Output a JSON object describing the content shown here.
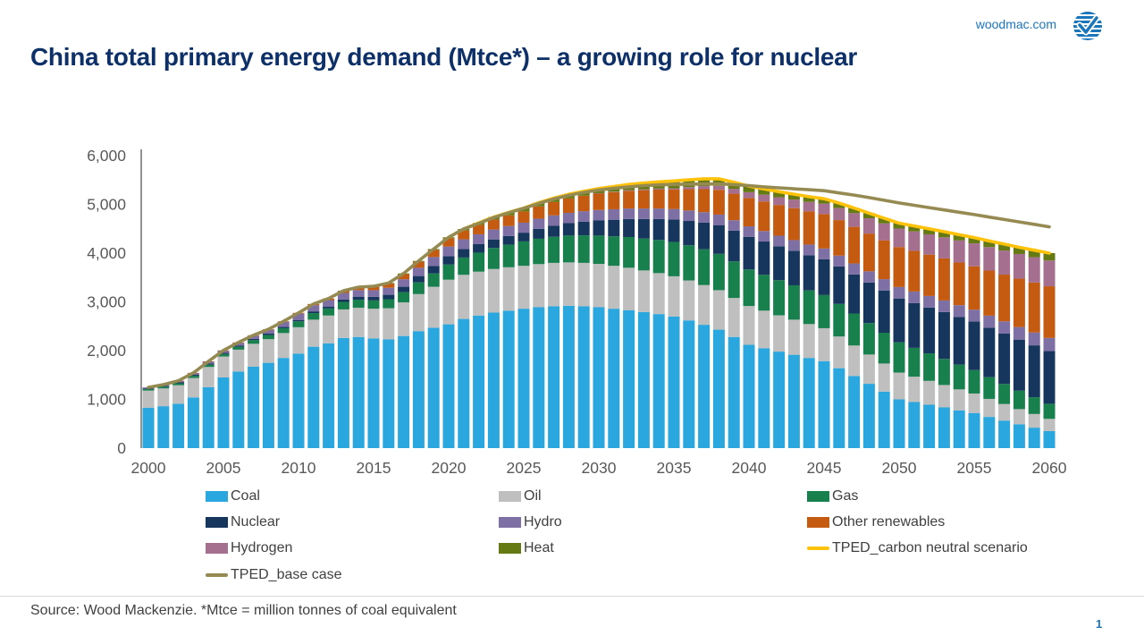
{
  "header": {
    "site": "woodmac.com",
    "logo": "woodmac-globe-check-logo",
    "page_number": "1"
  },
  "title": "China total primary energy demand (Mtce*) – a growing role for nuclear",
  "footer": {
    "source": "Source: Wood Mackenzie. *Mtce = million tonnes of coal equivalent"
  },
  "colors": {
    "title": "#0D3068",
    "brand_blue": "#1B75BB",
    "axis_text": "#595959",
    "legend_text": "#404040"
  },
  "chart_data": {
    "type": "bar",
    "stacked": true,
    "title": "China total primary energy demand (Mtce*)",
    "unit": "Mtce",
    "years": {
      "start": 2000,
      "end": 2060,
      "step": 1
    },
    "x_tick_labels": [
      "2000",
      "2005",
      "2010",
      "2015",
      "2020",
      "2025",
      "2030",
      "2035",
      "2040",
      "2045",
      "2050",
      "2055",
      "2060"
    ],
    "y_ticks": [
      0,
      1000,
      2000,
      3000,
      4000,
      5000,
      6000
    ],
    "y_tick_labels": [
      "0",
      "1,000",
      "2,000",
      "3,000",
      "4,000",
      "5,000",
      "6,000"
    ],
    "ylim": [
      0,
      6000
    ],
    "grid": false,
    "legend_position": "bottom",
    "series": [
      {
        "name": "Coal",
        "color": "#2AA7DE",
        "values": [
          830,
          860,
          910,
          1040,
          1250,
          1450,
          1570,
          1670,
          1750,
          1850,
          1940,
          2080,
          2150,
          2260,
          2280,
          2250,
          2230,
          2300,
          2400,
          2470,
          2540,
          2650,
          2720,
          2780,
          2820,
          2860,
          2890,
          2910,
          2920,
          2910,
          2890,
          2860,
          2830,
          2790,
          2750,
          2700,
          2620,
          2530,
          2430,
          2280,
          2120,
          2050,
          1980,
          1915,
          1850,
          1785,
          1640,
          1480,
          1320,
          1160,
          1000,
          945,
          890,
          835,
          775,
          720,
          640,
          565,
          490,
          420,
          350
        ]
      },
      {
        "name": "Oil",
        "color": "#BFBFBF",
        "values": [
          350,
          365,
          380,
          400,
          415,
          430,
          450,
          470,
          485,
          510,
          540,
          555,
          570,
          585,
          600,
          610,
          640,
          690,
          760,
          840,
          915,
          905,
          900,
          895,
          890,
          880,
          885,
          890,
          890,
          890,
          890,
          880,
          870,
          855,
          840,
          825,
          820,
          815,
          810,
          800,
          795,
          770,
          745,
          720,
          695,
          675,
          650,
          625,
          600,
          575,
          550,
          520,
          490,
          460,
          430,
          400,
          370,
          340,
          310,
          280,
          250
        ]
      },
      {
        "name": "Gas",
        "color": "#17804D",
        "values": [
          30,
          35,
          40,
          45,
          48,
          50,
          60,
          75,
          85,
          100,
          120,
          135,
          145,
          155,
          165,
          170,
          185,
          210,
          240,
          275,
          310,
          355,
          390,
          430,
          465,
          500,
          520,
          535,
          550,
          565,
          580,
          605,
          630,
          655,
          680,
          705,
          720,
          735,
          745,
          750,
          750,
          735,
          720,
          705,
          690,
          680,
          668,
          656,
          644,
          632,
          620,
          592,
          564,
          536,
          508,
          480,
          446,
          412,
          378,
          344,
          310
        ]
      },
      {
        "name": "Nuclear",
        "color": "#17365D",
        "values": [
          15,
          17,
          19,
          21,
          23,
          25,
          26,
          27,
          28,
          29,
          30,
          35,
          40,
          50,
          62,
          75,
          90,
          110,
          130,
          150,
          170,
          172,
          174,
          176,
          178,
          180,
          205,
          230,
          255,
          282,
          310,
          340,
          370,
          400,
          430,
          460,
          500,
          545,
          590,
          630,
          670,
          683,
          696,
          709,
          722,
          735,
          768,
          801,
          834,
          867,
          900,
          920,
          940,
          960,
          980,
          1000,
          1016,
          1032,
          1048,
          1064,
          1080
        ]
      },
      {
        "name": "Hydro",
        "color": "#7E6FA5",
        "values": [
          20,
          25,
          30,
          35,
          40,
          45,
          55,
          65,
          80,
          100,
          130,
          128,
          132,
          133,
          134,
          135,
          145,
          155,
          170,
          185,
          200,
          201,
          202,
          203,
          204,
          205,
          207,
          209,
          211,
          213,
          215,
          215,
          215,
          215,
          215,
          215,
          215,
          215,
          215,
          215,
          215,
          216,
          217,
          218,
          219,
          220,
          223,
          226,
          229,
          232,
          235,
          236,
          237,
          238,
          239,
          240,
          246,
          252,
          258,
          264,
          270
        ]
      },
      {
        "name": "Other renewables",
        "color": "#C55A11",
        "values": [
          0,
          1,
          2,
          3,
          4,
          5,
          7,
          9,
          11,
          13,
          15,
          24,
          33,
          44,
          56,
          70,
          86,
          104,
          124,
          146,
          170,
          182,
          194,
          206,
          218,
          230,
          252,
          274,
          296,
          318,
          340,
          352,
          364,
          376,
          388,
          400,
          436,
          472,
          508,
          544,
          580,
          605,
          630,
          655,
          680,
          705,
          728,
          751,
          774,
          797,
          820,
          834,
          848,
          862,
          876,
          890,
          924,
          958,
          992,
          1026,
          1060
        ]
      },
      {
        "name": "Hydrogen",
        "color": "#A56F8F",
        "values": [
          0,
          0,
          0,
          0,
          0,
          0,
          0,
          0,
          0,
          0,
          0,
          0,
          0,
          0,
          0,
          0,
          0,
          0,
          0,
          0,
          0,
          0,
          0,
          0,
          0,
          0,
          0,
          0,
          0,
          0,
          5,
          9,
          13,
          17,
          21,
          25,
          44,
          63,
          82,
          101,
          120,
          139,
          158,
          177,
          196,
          215,
          248,
          281,
          314,
          347,
          380,
          398,
          416,
          434,
          452,
          470,
          482,
          494,
          506,
          518,
          530
        ]
      },
      {
        "name": "Heat",
        "color": "#667A14",
        "values": [
          0,
          0,
          0,
          0,
          0,
          0,
          0,
          0,
          0,
          0,
          0,
          0,
          0,
          3,
          6,
          10,
          12,
          14,
          16,
          18,
          20,
          30,
          40,
          50,
          60,
          70,
          75,
          80,
          85,
          90,
          95,
          106,
          117,
          128,
          139,
          150,
          150,
          150,
          145,
          135,
          125,
          120,
          115,
          110,
          105,
          100,
          102,
          104,
          106,
          108,
          110,
          112,
          114,
          116,
          118,
          120,
          126,
          132,
          138,
          144,
          150
        ]
      }
    ],
    "lines": [
      {
        "name": "TPED_carbon neutral scenario",
        "color": "#FFC20A",
        "start_year": 2020,
        "values": [
          4325,
          4495,
          4620,
          4740,
          4835,
          4925,
          5034,
          5128,
          5207,
          5268,
          5325,
          5367,
          5409,
          5436,
          5463,
          5480,
          5505,
          5525,
          5525,
          5455,
          5375,
          5318,
          5261,
          5209,
          5157,
          5115,
          5027,
          4924,
          4821,
          4718,
          4615,
          4557,
          4499,
          4441,
          4378,
          4320,
          4250,
          4185,
          4120,
          4060,
          4000
        ]
      },
      {
        "name": "TPED_base case",
        "color": "#958B52",
        "start_year": 2000,
        "values": [
          1245,
          1303,
          1381,
          1544,
          1780,
          2005,
          2168,
          2316,
          2439,
          2602,
          2775,
          2957,
          3070,
          3230,
          3303,
          3320,
          3388,
          3583,
          3840,
          4084,
          4325,
          4495,
          4610,
          4730,
          4830,
          4920,
          5020,
          5110,
          5185,
          5245,
          5295,
          5330,
          5360,
          5385,
          5400,
          5410,
          5415,
          5418,
          5420,
          5405,
          5385,
          5360,
          5340,
          5320,
          5300,
          5280,
          5235,
          5190,
          5140,
          5085,
          5030,
          4982,
          4934,
          4886,
          4838,
          4790,
          4740,
          4690,
          4640,
          4590,
          4540
        ]
      }
    ],
    "legend": [
      {
        "label": "Coal",
        "color": "#2AA7DE",
        "type": "box",
        "col": 0,
        "row": 0
      },
      {
        "label": "Oil",
        "color": "#BFBFBF",
        "type": "box",
        "col": 1,
        "row": 0
      },
      {
        "label": "Gas",
        "color": "#17804D",
        "type": "box",
        "col": 2,
        "row": 0
      },
      {
        "label": "Nuclear",
        "color": "#17365D",
        "type": "box",
        "col": 0,
        "row": 1
      },
      {
        "label": "Hydro",
        "color": "#7E6FA5",
        "type": "box",
        "col": 1,
        "row": 1
      },
      {
        "label": "Other renewables",
        "color": "#C55A11",
        "type": "box",
        "col": 2,
        "row": 1
      },
      {
        "label": "Hydrogen",
        "color": "#A56F8F",
        "type": "box",
        "col": 0,
        "row": 2
      },
      {
        "label": "Heat",
        "color": "#667A14",
        "type": "box",
        "col": 1,
        "row": 2
      },
      {
        "label": "TPED_carbon neutral scenario",
        "color": "#FFC20A",
        "type": "line",
        "col": 2,
        "row": 2
      },
      {
        "label": "TPED_base case",
        "color": "#958B52",
        "type": "line",
        "col": 0,
        "row": 3
      }
    ]
  }
}
